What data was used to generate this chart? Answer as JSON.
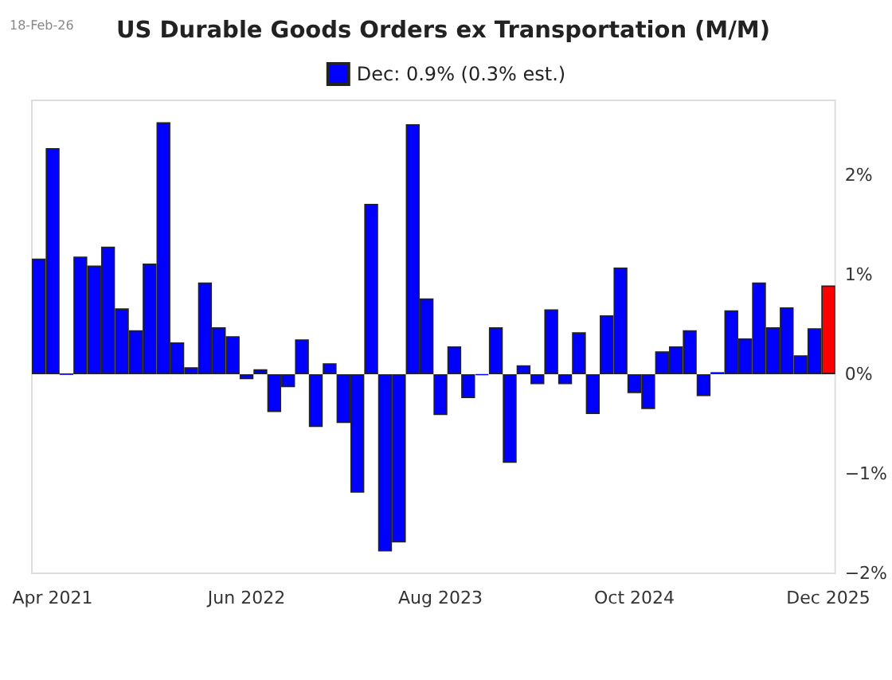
{
  "chart_data": {
    "type": "bar",
    "title": "US Durable Goods Orders ex Transportation (M/M)",
    "annotations": [
      "18-Feb-26"
    ],
    "categories": [
      null,
      "Apr 2021",
      null,
      null,
      null,
      null,
      null,
      null,
      null,
      null,
      null,
      null,
      null,
      null,
      null,
      "Jun 2022",
      null,
      null,
      null,
      null,
      null,
      null,
      null,
      null,
      null,
      null,
      null,
      null,
      null,
      "Aug 2023",
      null,
      null,
      null,
      null,
      null,
      null,
      null,
      null,
      null,
      null,
      null,
      null,
      null,
      "Oct 2024",
      null,
      null,
      null,
      null,
      null,
      null,
      null,
      null,
      null,
      null,
      null,
      null,
      null,
      "Dec 2025"
    ],
    "series": [
      {
        "name": "Dec: 0.9% (0.3% est.)",
        "color": "#0000ff",
        "colors": [
          "#0000ff",
          "#0000ff",
          "#0000ff",
          "#0000ff",
          "#0000ff",
          "#0000ff",
          "#0000ff",
          "#0000ff",
          "#0000ff",
          "#0000ff",
          "#0000ff",
          "#0000ff",
          "#0000ff",
          "#0000ff",
          "#0000ff",
          "#0000ff",
          "#0000ff",
          "#0000ff",
          "#0000ff",
          "#0000ff",
          "#0000ff",
          "#0000ff",
          "#0000ff",
          "#0000ff",
          "#0000ff",
          "#0000ff",
          "#0000ff",
          "#0000ff",
          "#0000ff",
          "#0000ff",
          "#0000ff",
          "#0000ff",
          "#0000ff",
          "#0000ff",
          "#0000ff",
          "#0000ff",
          "#0000ff",
          "#0000ff",
          "#0000ff",
          "#0000ff",
          "#0000ff",
          "#0000ff",
          "#0000ff",
          "#0000ff",
          "#0000ff",
          "#0000ff",
          "#0000ff",
          "#0000ff",
          "#0000ff",
          "#0000ff",
          "#0000ff",
          "#0000ff",
          "#0000ff",
          "#0000ff",
          "#0000ff",
          "#0000ff",
          "#0000ff",
          "#ff0000"
        ],
        "values": [
          1.16,
          2.27,
          0,
          1.18,
          1.09,
          1.28,
          0.66,
          0.44,
          1.11,
          2.53,
          0.32,
          0.07,
          0.92,
          0.47,
          0.38,
          -0.05,
          0.05,
          -0.38,
          -0.13,
          0.35,
          -0.53,
          0.11,
          -0.49,
          -1.19,
          1.71,
          -1.78,
          -1.69,
          2.51,
          0.76,
          -0.41,
          0.28,
          -0.24,
          -0.01,
          0.47,
          -0.89,
          0.09,
          -0.1,
          0.65,
          -0.1,
          0.42,
          -0.4,
          0.59,
          1.07,
          -0.19,
          -0.35,
          0.23,
          0.28,
          0.44,
          -0.22,
          0.02,
          0.64,
          0.36,
          0.92,
          0.47,
          0.67,
          0.19,
          0.46,
          0.89
        ]
      }
    ],
    "ylim": [
      -2,
      2.75
    ],
    "yticks": [
      {
        "value": -2,
        "label": "−2%"
      },
      {
        "value": -1,
        "label": "−1%"
      },
      {
        "value": 0,
        "label": "0%"
      },
      {
        "value": 1,
        "label": "1%"
      },
      {
        "value": 2,
        "label": "2%"
      }
    ],
    "grid": false,
    "legend": "top"
  }
}
